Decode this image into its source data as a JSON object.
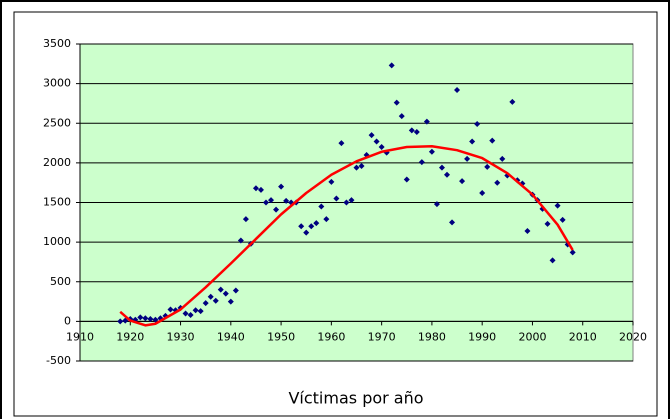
{
  "chart_data": {
    "type": "scatter",
    "title": "Víctimas por año",
    "xlim": [
      1910,
      2020
    ],
    "xticks": [
      1910,
      1920,
      1930,
      1940,
      1950,
      1960,
      1970,
      1980,
      1990,
      2000,
      2010,
      2020
    ],
    "ylim": [
      -500,
      3500
    ],
    "yticks": [
      -500,
      0,
      500,
      1000,
      1500,
      2000,
      2500,
      3000,
      3500
    ],
    "grid": true,
    "background": "#ccffcc",
    "series": [
      {
        "type": "scatter",
        "color": "#000080",
        "x": [
          1918,
          1919,
          1920,
          1921,
          1922,
          1923,
          1924,
          1925,
          1926,
          1927,
          1928,
          1929,
          1930,
          1931,
          1932,
          1933,
          1934,
          1935,
          1936,
          1937,
          1938,
          1939,
          1940,
          1941,
          1942,
          1943,
          1944,
          1945,
          1946,
          1947,
          1948,
          1949,
          1950,
          1951,
          1952,
          1953,
          1954,
          1955,
          1956,
          1957,
          1958,
          1959,
          1960,
          1961,
          1962,
          1963,
          1964,
          1965,
          1966,
          1967,
          1968,
          1969,
          1970,
          1971,
          1972,
          1973,
          1974,
          1975,
          1976,
          1977,
          1978,
          1979,
          1980,
          1981,
          1982,
          1983,
          1984,
          1985,
          1986,
          1987,
          1988,
          1989,
          1990,
          1991,
          1992,
          1993,
          1994,
          1995,
          1996,
          1997,
          1998,
          1999,
          2000,
          2001,
          2002,
          2003,
          2004,
          2005,
          2006,
          2007,
          2008
        ],
        "values": [
          0,
          10,
          30,
          20,
          50,
          40,
          30,
          20,
          40,
          70,
          150,
          140,
          170,
          100,
          80,
          140,
          130,
          230,
          310,
          260,
          400,
          350,
          250,
          390,
          1020,
          1290,
          980,
          1680,
          1660,
          1500,
          1530,
          1410,
          1700,
          1520,
          1500,
          1500,
          1200,
          1120,
          1200,
          1240,
          1450,
          1290,
          1760,
          1550,
          2250,
          1500,
          1530,
          1940,
          1960,
          2100,
          2350,
          2270,
          2200,
          2130,
          3230,
          2760,
          2590,
          1790,
          2410,
          2390,
          2010,
          2520,
          2140,
          1480,
          1940,
          1850,
          1250,
          2920,
          1770,
          2050,
          2270,
          2490,
          1620,
          1950,
          2280,
          1750,
          2050,
          1840,
          2770,
          1780,
          1740,
          1140,
          1600,
          1530,
          1420,
          1230,
          770,
          1460,
          1280,
          970,
          870
        ]
      },
      {
        "type": "line",
        "color": "#ff0000",
        "x": [
          1918,
          1920,
          1923,
          1925,
          1930,
          1935,
          1940,
          1945,
          1950,
          1955,
          1960,
          1965,
          1970,
          1975,
          1980,
          1985,
          1990,
          1995,
          2000,
          2005,
          2008
        ],
        "values": [
          120,
          10,
          -50,
          -30,
          150,
          430,
          730,
          1040,
          1350,
          1620,
          1850,
          2020,
          2140,
          2200,
          2210,
          2160,
          2060,
          1870,
          1600,
          1220,
          900
        ]
      }
    ]
  }
}
